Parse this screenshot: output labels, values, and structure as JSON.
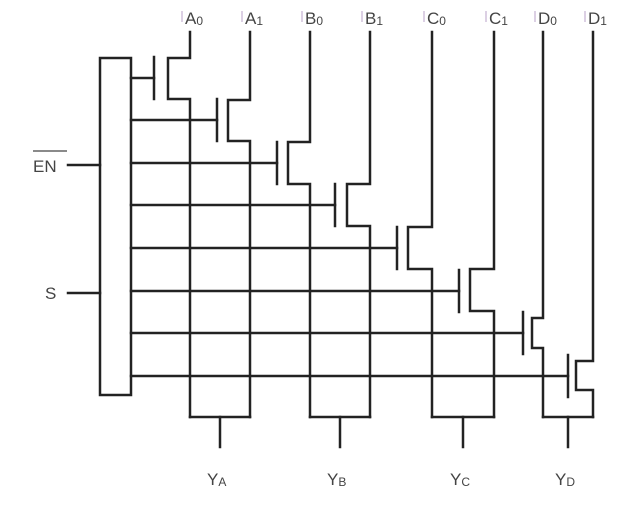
{
  "inputs": [
    {
      "letter": "A",
      "sub": "0"
    },
    {
      "letter": "A",
      "sub": "1"
    },
    {
      "letter": "B",
      "sub": "0"
    },
    {
      "letter": "B",
      "sub": "1"
    },
    {
      "letter": "C",
      "sub": "0"
    },
    {
      "letter": "C",
      "sub": "1"
    },
    {
      "letter": "D",
      "sub": "0"
    },
    {
      "letter": "D",
      "sub": "1"
    }
  ],
  "outputs": [
    {
      "letter": "Y",
      "sub": "A"
    },
    {
      "letter": "Y",
      "sub": "B"
    },
    {
      "letter": "Y",
      "sub": "C"
    },
    {
      "letter": "Y",
      "sub": "D"
    }
  ],
  "control": {
    "enable": "EN",
    "enable_active_low": true,
    "select": "S"
  },
  "colors": {
    "wire": "#222222",
    "label": "#444444"
  }
}
